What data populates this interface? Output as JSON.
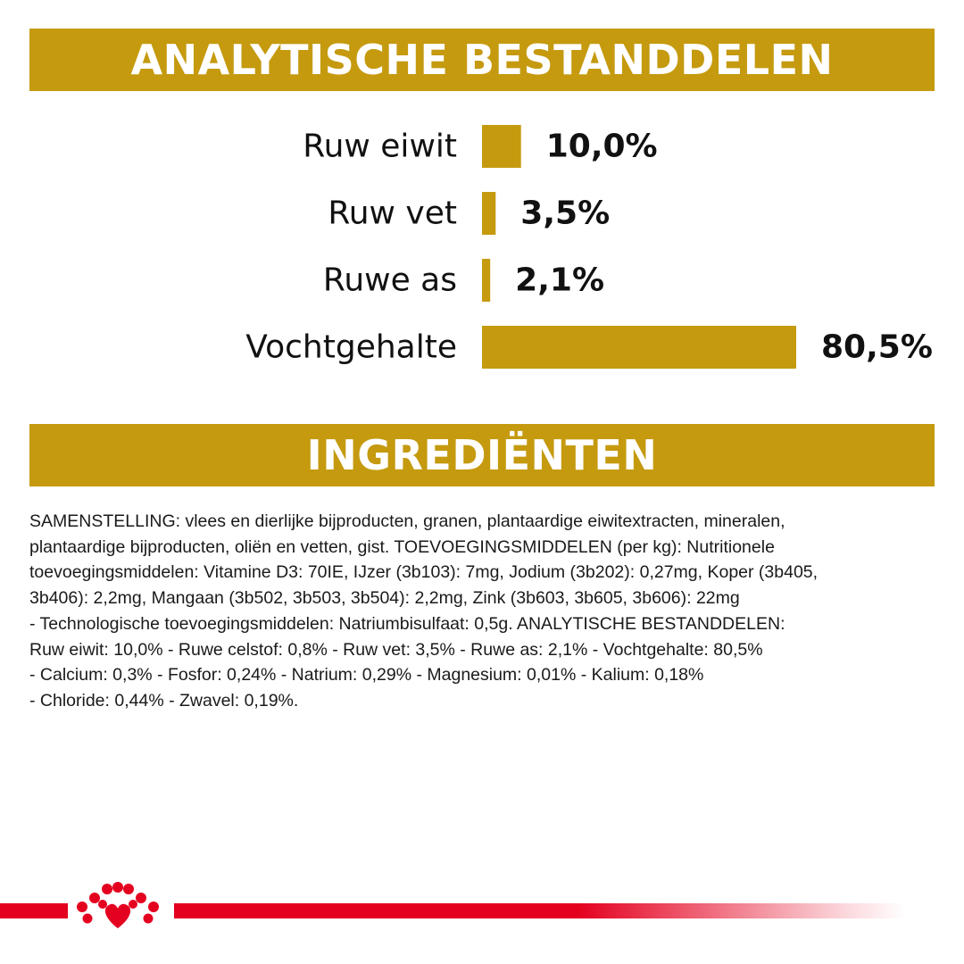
{
  "header": {
    "title": "ANALYTISCHE BESTANDDELEN"
  },
  "chart_data": {
    "type": "bar",
    "orientation": "horizontal",
    "title": "ANALYTISCHE BESTANDDELEN",
    "categories": [
      "Ruw eiwit",
      "Ruw vet",
      "Ruwe as",
      "Vochtgehalte"
    ],
    "values": [
      10.0,
      3.5,
      2.1,
      80.5
    ],
    "value_labels": [
      "10,0%",
      "3,5%",
      "2,1%",
      "80,5%"
    ],
    "unit": "%",
    "xlim": [
      0,
      80.5
    ],
    "grid": false,
    "legend": "none",
    "bar_color": "#c59a0f"
  },
  "ingredients": {
    "title": "INGREDIËNTEN",
    "lines": [
      "SAMENSTELLING: vlees en dierlijke bijproducten, granen, plantaardige eiwitextracten, mineralen,",
      "plantaardige bijproducten, oliën en vetten, gist. TOEVOEGINGSMIDDELEN (per kg): Nutritionele",
      "toevoegingsmiddelen: Vitamine D3: 70IE, IJzer (3b103): 7mg, Jodium (3b202): 0,27mg, Koper (3b405,",
      "3b406): 2,2mg, Mangaan (3b502, 3b503, 3b504): 2,2mg, Zink (3b603, 3b605, 3b606): 22mg",
      "- Technologische toevoegingsmiddelen: Natriumbisulfaat: 0,5g. ANALYTISCHE BESTANDDELEN:",
      "Ruw eiwit: 10,0% - Ruwe celstof: 0,8% - Ruw vet: 3,5% - Ruwe as: 2,1% - Vochtgehalte: 80,5%",
      "- Calcium: 0,3% - Fosfor: 0,24% - Natrium: 0,29% - Magnesium: 0,01% - Kalium: 0,18%",
      "- Chloride: 0,44% - Zwavel: 0,19%."
    ]
  },
  "footer": {
    "logo": "crown-logo",
    "line_color": "#e4001f"
  }
}
